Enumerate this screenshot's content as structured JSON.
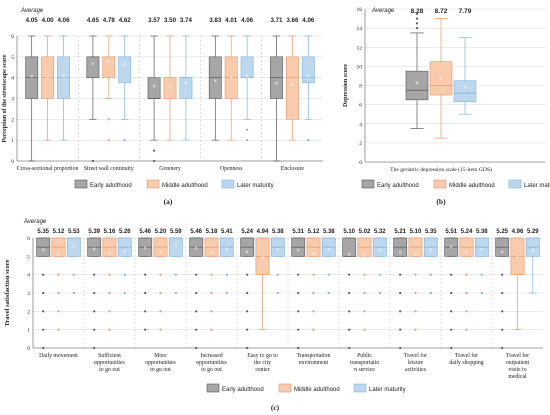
{
  "colors": {
    "early": "#a6a6a6",
    "middle": "#f8cbad",
    "later": "#bdd7ee",
    "early_edge": "#595959",
    "middle_edge": "#e3996e",
    "later_edge": "#7fb2d9",
    "grid": "#d9d9d9",
    "mean_marker": "#ffffff"
  },
  "legend": [
    "Early adulthood",
    "Middle adulthood",
    "Later maturity"
  ],
  "average_label": "Average",
  "chart_data": [
    {
      "id": "a",
      "type": "box",
      "panel_label": "(a)",
      "ylabel": "Perception of the streetscape score",
      "ylim": [
        0,
        6
      ],
      "yticks": [
        0,
        1,
        2,
        3,
        4,
        5,
        6
      ],
      "grid": true,
      "categories": [
        "Cross-sectional proportion",
        "Street wall continuity",
        "Greenery",
        "Openness",
        "Enclosure"
      ],
      "series": [
        {
          "name": "Early adulthood",
          "averages": [
            "4.05",
            "4.65",
            "3.57",
            "3.83",
            "3.71"
          ],
          "boxes": [
            [
              0,
              3,
              4,
              5,
              6
            ],
            [
              2,
              4,
              5,
              5,
              6
            ],
            [
              1,
              3,
              3,
              4,
              6
            ],
            [
              1,
              3,
              4,
              5,
              6
            ],
            [
              0,
              3,
              4,
              5,
              6
            ]
          ],
          "outliers": [
            [],
            [
              0
            ],
            [
              0,
              0.5
            ],
            [],
            []
          ]
        },
        {
          "name": "Middle adulthood",
          "averages": [
            "4.00",
            "4.78",
            "3.50",
            "4.01",
            "3.66"
          ],
          "boxes": [
            [
              1,
              3,
              4,
              5,
              6
            ],
            [
              3,
              4,
              5,
              5,
              6
            ],
            [
              1,
              3,
              4,
              4,
              6
            ],
            [
              1,
              3,
              4,
              5,
              6
            ],
            [
              1,
              2,
              4,
              5,
              6
            ]
          ],
          "outliers": [
            [],
            [
              1,
              2
            ],
            [],
            [],
            []
          ]
        },
        {
          "name": "Later maturity",
          "averages": [
            "4.06",
            "4.62",
            "3.74",
            "4.06",
            "4.06"
          ],
          "boxes": [
            [
              1,
              3,
              4,
              5,
              6
            ],
            [
              2,
              3.75,
              5,
              5,
              6
            ],
            [
              1,
              3,
              4,
              4,
              6
            ],
            [
              2,
              4,
              4,
              5,
              6
            ],
            [
              2,
              3.75,
              4,
              5,
              6
            ]
          ],
          "outliers": [
            [],
            [
              1
            ],
            [],
            [
              1,
              1.5
            ],
            [
              1
            ]
          ]
        }
      ]
    },
    {
      "id": "b",
      "type": "box",
      "panel_label": "(b)",
      "ylabel": "Depression score",
      "xlabel": "The geriatric depression scale (15-item GDS)",
      "ylim": [
        0,
        16
      ],
      "yticks": [
        0,
        2,
        4,
        6,
        8,
        10,
        12,
        14,
        16
      ],
      "grid": true,
      "series": [
        {
          "name": "Early adulthood",
          "average": "8.28",
          "box": [
            3.5,
            6.5,
            7.5,
            9.5,
            13.5
          ],
          "outliers": [
            14,
            14.5,
            15,
            15.5
          ]
        },
        {
          "name": "Middle adulthood",
          "average": "8.72",
          "box": [
            2.5,
            7,
            8,
            10.5,
            15
          ],
          "outliers": []
        },
        {
          "name": "Later maturity",
          "average": "7.79",
          "box": [
            5,
            6.3,
            7.2,
            8.5,
            13
          ],
          "outliers": []
        }
      ]
    },
    {
      "id": "c",
      "type": "box",
      "panel_label": "(c)",
      "ylabel": "Travel satisfaction score",
      "ylim": [
        0,
        6
      ],
      "yticks": [
        0,
        1,
        2,
        3,
        4,
        5,
        6
      ],
      "grid": true,
      "categories": [
        "Daily movement",
        "Sufficient opportunities to go out",
        "More opportunities to go out",
        "Increased opportunities to go out",
        "Easy to go to the city center",
        "Transportation environment",
        "Public transportatio n service",
        "Travel for leisure activities",
        "Travel for daily shopping",
        "Travel for outpatient visits to medical"
      ],
      "series": [
        {
          "name": "Early adulthood",
          "averages": [
            "5.35",
            "5.39",
            "5.46",
            "5.46",
            "5.24",
            "5.31",
            "5.10",
            "5.21",
            "5.51",
            "5.25"
          ],
          "boxes": [
            [
              5,
              5,
              5.5,
              6,
              6
            ],
            [
              5,
              5,
              5.5,
              6,
              6
            ],
            [
              5,
              5,
              5.5,
              6,
              6
            ],
            [
              5,
              5,
              5.5,
              6,
              6
            ],
            [
              5,
              5,
              5.5,
              6,
              6
            ],
            [
              5,
              5,
              5.5,
              6,
              6
            ],
            [
              5,
              5,
              5,
              6,
              6
            ],
            [
              5,
              5,
              5.5,
              6,
              6
            ],
            [
              5,
              5,
              5.5,
              6,
              6
            ],
            [
              5,
              5,
              5.5,
              6,
              6
            ]
          ],
          "outliers": [
            [
              0,
              1,
              2,
              3,
              4
            ],
            [
              0,
              1,
              2,
              3,
              4
            ],
            [
              1,
              2,
              3,
              4
            ],
            [
              0,
              1,
              2,
              3,
              4
            ],
            [
              0,
              1,
              2,
              3,
              4
            ],
            [
              0,
              1,
              2,
              3,
              4
            ],
            [
              0,
              1,
              2,
              3,
              4
            ],
            [
              0,
              1,
              2,
              3,
              4
            ],
            [
              0,
              1,
              2,
              3,
              4
            ],
            [
              0,
              1,
              2,
              3,
              4
            ]
          ]
        },
        {
          "name": "Middle adulthood",
          "averages": [
            "5.12",
            "5.16",
            "5.20",
            "5.18",
            "4.94",
            "5.12",
            "5.02",
            "5.10",
            "5.24",
            "4.96"
          ],
          "boxes": [
            [
              5,
              5,
              5.5,
              6,
              6
            ],
            [
              5,
              5,
              5.5,
              6,
              6
            ],
            [
              5,
              5,
              5.5,
              6,
              6
            ],
            [
              5,
              5,
              5.5,
              6,
              6
            ],
            [
              1,
              4,
              5,
              6,
              6
            ],
            [
              5,
              5,
              5.5,
              6,
              6
            ],
            [
              5,
              5,
              5.5,
              6,
              6
            ],
            [
              5,
              5,
              5.5,
              6,
              6
            ],
            [
              5,
              5,
              5.5,
              6,
              6
            ],
            [
              1,
              4,
              5,
              6,
              6
            ]
          ],
          "outliers": [
            [
              1,
              2,
              3,
              4
            ],
            [
              1,
              2,
              3,
              4
            ],
            [
              1,
              2,
              3,
              4
            ],
            [
              1,
              2,
              3,
              4
            ],
            [],
            [
              1,
              2,
              3,
              4
            ],
            [
              1,
              2,
              3,
              4
            ],
            [
              1,
              2,
              3,
              4
            ],
            [
              1,
              2,
              3,
              4
            ],
            []
          ]
        },
        {
          "name": "Later maturity",
          "averages": [
            "5.53",
            "5.26",
            "5.59",
            "5.41",
            "5.38",
            "5.38",
            "5.32",
            "5.35",
            "5.38",
            "5.29"
          ],
          "boxes": [
            [
              5,
              5,
              6,
              6,
              6
            ],
            [
              5,
              5,
              5.5,
              6,
              6
            ],
            [
              5,
              5,
              6,
              6,
              6
            ],
            [
              5,
              5,
              5.5,
              6,
              6
            ],
            [
              5,
              5,
              5.5,
              6,
              6
            ],
            [
              5,
              5,
              5.5,
              6,
              6
            ],
            [
              5,
              5,
              5.5,
              6,
              6
            ],
            [
              5,
              5,
              5.5,
              6,
              6
            ],
            [
              5,
              5,
              5.5,
              6,
              6
            ],
            [
              3,
              5,
              5.5,
              6,
              6
            ]
          ],
          "outliers": [
            [
              3,
              4
            ],
            [
              3,
              4
            ],
            [
              3,
              4
            ],
            [
              3,
              4
            ],
            [
              3,
              4
            ],
            [
              3,
              4
            ],
            [
              3,
              4
            ],
            [
              3,
              4
            ],
            [
              3,
              4
            ],
            []
          ]
        }
      ]
    }
  ]
}
